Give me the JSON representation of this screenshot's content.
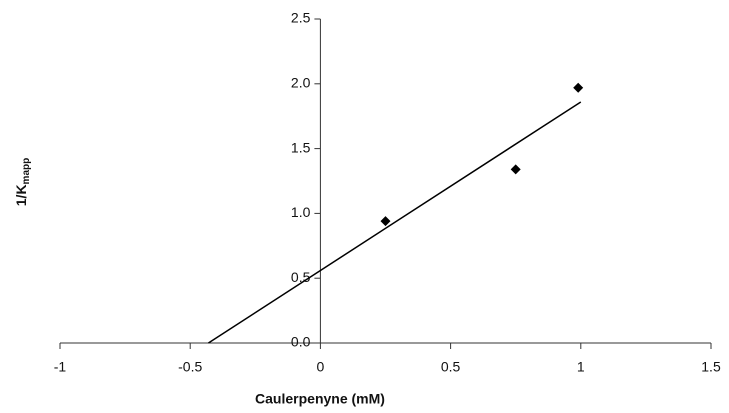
{
  "chart_data": {
    "type": "scatter",
    "x_label": "Caulerpenyne (mM)",
    "y_label": "1/K",
    "y_label_subscript": "mapp",
    "series": [
      {
        "color": "#000000",
        "x": [
          0.25,
          0.75,
          0.99
        ],
        "values": [
          0.94,
          1.34,
          1.97
        ]
      }
    ],
    "trendline": {
      "color": "#000000",
      "x": [
        -0.43,
        1
      ],
      "values": [
        0,
        1.86
      ]
    },
    "xlim": [
      -1,
      1.5
    ],
    "xticks": [
      -1,
      -0.5,
      0,
      0.5,
      1,
      1.5
    ],
    "ylim": [
      0,
      2.5
    ],
    "yticks": [
      {
        "value": 0,
        "label": "0.0"
      },
      0.5,
      {
        "value": 1,
        "label": "1.0"
      },
      1.5,
      {
        "value": 2,
        "label": "2.0"
      },
      2.5
    ],
    "grid": false
  }
}
